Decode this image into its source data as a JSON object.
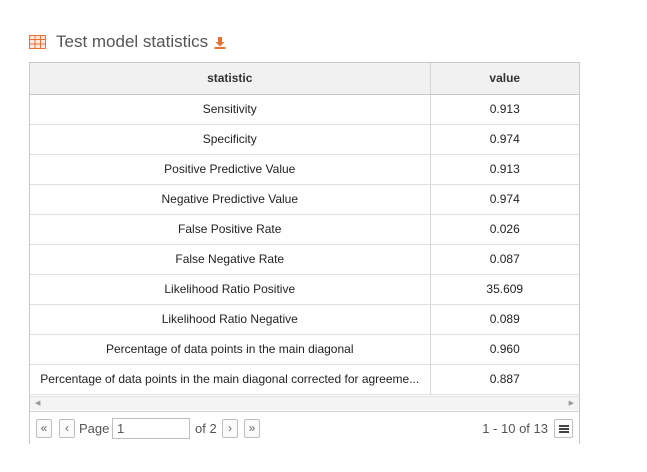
{
  "header": {
    "title": "Test model statistics",
    "icon": "table-icon",
    "download_icon": "download-icon",
    "accent_color": "#e8713a"
  },
  "table": {
    "columns": [
      "statistic",
      "value"
    ],
    "rows": [
      {
        "statistic": "Sensitivity",
        "value": "0.913"
      },
      {
        "statistic": "Specificity",
        "value": "0.974"
      },
      {
        "statistic": "Positive Predictive Value",
        "value": "0.913"
      },
      {
        "statistic": "Negative Predictive Value",
        "value": "0.974"
      },
      {
        "statistic": "False Positive Rate",
        "value": "0.026"
      },
      {
        "statistic": "False Negative Rate",
        "value": "0.087"
      },
      {
        "statistic": "Likelihood Ratio Positive",
        "value": "35.609"
      },
      {
        "statistic": "Likelihood Ratio Negative",
        "value": "0.089"
      },
      {
        "statistic": "Percentage of data points in the main diagonal",
        "value": "0.960"
      },
      {
        "statistic": "Percentage of data points in the main diagonal corrected for agreeme...",
        "value": "0.887"
      }
    ]
  },
  "pager": {
    "first": "«",
    "prev": "‹",
    "page_label": "Page",
    "page_value": "1",
    "of_label": "of 2",
    "next": "›",
    "last": "»",
    "summary": "1 - 10 of 13"
  }
}
